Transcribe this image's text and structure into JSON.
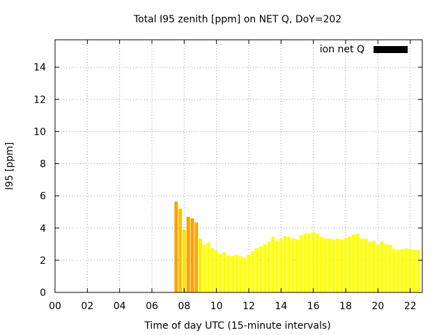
{
  "chart_data": {
    "type": "bar",
    "title": "Total I95 zenith [ppm] on NET Q, DoY=202",
    "xlabel": "Time of day UTC (15-minute intervals)",
    "ylabel": "I95 [ppm]",
    "xlim": [
      0,
      22.75
    ],
    "ylim": [
      0,
      15.7
    ],
    "x_tick_values": [
      0,
      2,
      4,
      6,
      8,
      10,
      12,
      14,
      16,
      18,
      20,
      22
    ],
    "x_tick_labels": [
      "00",
      "02",
      "04",
      "06",
      "08",
      "10",
      "12",
      "14",
      "16",
      "18",
      "20",
      "22"
    ],
    "y_ticks": [
      0,
      2,
      4,
      6,
      8,
      10,
      12,
      14
    ],
    "grid": true,
    "legend_position": "top-right",
    "series": [
      {
        "name": "ion net Q",
        "legend_color": "#000000",
        "x": [
          7.5,
          7.75,
          8.0,
          8.25,
          8.5,
          8.75,
          9.0,
          9.25,
          9.5,
          9.75,
          10.0,
          10.25,
          10.5,
          10.75,
          11.0,
          11.25,
          11.5,
          11.75,
          12.0,
          12.25,
          12.5,
          12.75,
          13.0,
          13.25,
          13.5,
          13.75,
          14.0,
          14.25,
          14.5,
          14.75,
          15.0,
          15.25,
          15.5,
          15.75,
          16.0,
          16.25,
          16.5,
          16.75,
          17.0,
          17.25,
          17.5,
          17.75,
          18.0,
          18.25,
          18.5,
          18.75,
          19.0,
          19.25,
          19.5,
          19.75,
          20.0,
          20.25,
          20.5,
          20.75,
          21.0,
          21.25,
          21.5,
          21.75,
          22.0,
          22.25,
          22.5
        ],
        "values": [
          5.65,
          5.2,
          3.9,
          4.7,
          4.6,
          4.35,
          3.35,
          2.95,
          3.1,
          2.75,
          2.6,
          2.4,
          2.5,
          2.3,
          2.25,
          2.35,
          2.25,
          2.15,
          2.35,
          2.55,
          2.75,
          2.85,
          3.0,
          3.15,
          3.45,
          3.2,
          3.35,
          3.5,
          3.45,
          3.35,
          3.3,
          3.55,
          3.65,
          3.65,
          3.75,
          3.65,
          3.45,
          3.35,
          3.35,
          3.3,
          3.35,
          3.3,
          3.4,
          3.5,
          3.6,
          3.65,
          3.35,
          3.35,
          3.15,
          3.2,
          2.95,
          3.15,
          3.0,
          2.95,
          2.7,
          2.65,
          2.7,
          2.75,
          2.7,
          2.65,
          2.65
        ],
        "colors": [
          "#ff9f00",
          "#ffc000",
          "#ffe000",
          "#ff9f00",
          "#ffa000",
          "#ffa800",
          "#ffef00",
          "#ffff00",
          "#ffff00",
          "#ffff00",
          "#ffff00",
          "#ffff00",
          "#ffff00",
          "#ffff00",
          "#ffff00",
          "#ffff00",
          "#ffff00",
          "#ffff00",
          "#ffff00",
          "#ffff00",
          "#ffff00",
          "#ffff00",
          "#ffff00",
          "#ffff00",
          "#ffff00",
          "#ffff00",
          "#ffff00",
          "#ffff00",
          "#ffff00",
          "#ffff00",
          "#ffff00",
          "#ffff00",
          "#ffff00",
          "#ffff00",
          "#ffff00",
          "#ffff00",
          "#ffff00",
          "#ffff00",
          "#ffff00",
          "#ffff00",
          "#ffff00",
          "#ffff00",
          "#ffff00",
          "#ffff00",
          "#ffff00",
          "#ffff00",
          "#ffff00",
          "#ffff00",
          "#ffff00",
          "#ffff00",
          "#ffff00",
          "#ffff00",
          "#ffff00",
          "#ffff00",
          "#ffff00",
          "#ffff00",
          "#ffff00",
          "#ffff00",
          "#ffff00",
          "#ffff00",
          "#ffff00"
        ]
      }
    ]
  }
}
